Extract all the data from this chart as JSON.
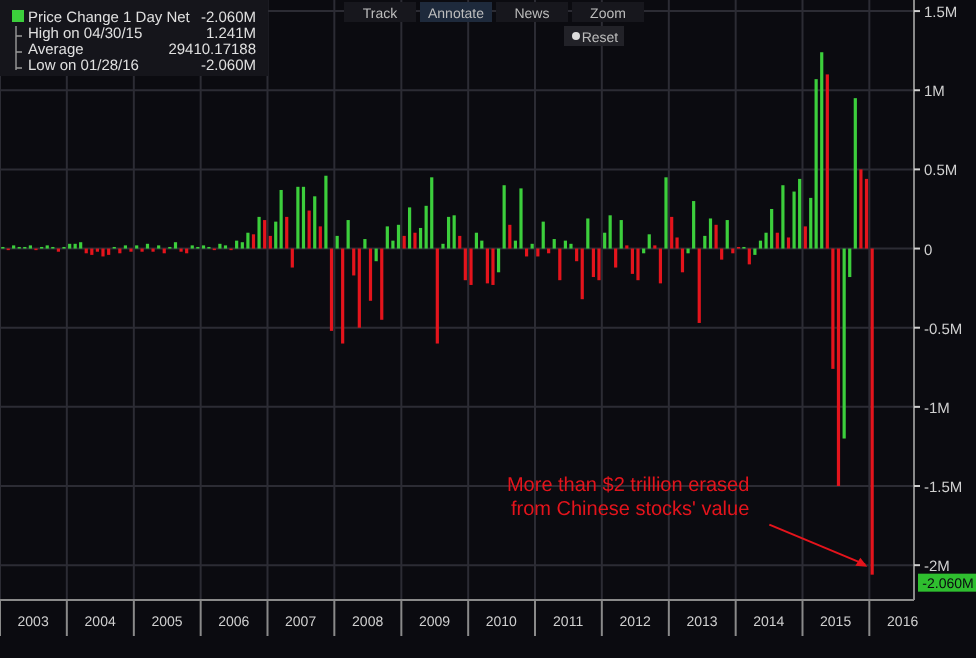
{
  "chart_data": {
    "type": "bar",
    "x": [
      "2003-01",
      "2003-02",
      "2003-03",
      "2003-04",
      "2003-05",
      "2003-06",
      "2003-07",
      "2003-08",
      "2003-09",
      "2003-10",
      "2003-11",
      "2003-12",
      "2004-01",
      "2004-02",
      "2004-03",
      "2004-04",
      "2004-05",
      "2004-06",
      "2004-07",
      "2004-08",
      "2004-09",
      "2004-10",
      "2004-11",
      "2004-12",
      "2005-01",
      "2005-02",
      "2005-03",
      "2005-04",
      "2005-05",
      "2005-06",
      "2005-07",
      "2005-08",
      "2005-09",
      "2005-10",
      "2005-11",
      "2005-12",
      "2006-01",
      "2006-02",
      "2006-03",
      "2006-04",
      "2006-05",
      "2006-06",
      "2006-07",
      "2006-08",
      "2006-09",
      "2006-10",
      "2006-11",
      "2006-12",
      "2007-01",
      "2007-02",
      "2007-03",
      "2007-04",
      "2007-05",
      "2007-06",
      "2007-07",
      "2007-08",
      "2007-09",
      "2007-10",
      "2007-11",
      "2007-12",
      "2008-01",
      "2008-02",
      "2008-03",
      "2008-04",
      "2008-05",
      "2008-06",
      "2008-07",
      "2008-08",
      "2008-09",
      "2008-10",
      "2008-11",
      "2008-12",
      "2009-01",
      "2009-02",
      "2009-03",
      "2009-04",
      "2009-05",
      "2009-06",
      "2009-07",
      "2009-08",
      "2009-09",
      "2009-10",
      "2009-11",
      "2009-12",
      "2010-01",
      "2010-02",
      "2010-03",
      "2010-04",
      "2010-05",
      "2010-06",
      "2010-07",
      "2010-08",
      "2010-09",
      "2010-10",
      "2010-11",
      "2010-12",
      "2011-01",
      "2011-02",
      "2011-03",
      "2011-04",
      "2011-05",
      "2011-06",
      "2011-07",
      "2011-08",
      "2011-09",
      "2011-10",
      "2011-11",
      "2011-12",
      "2012-01",
      "2012-02",
      "2012-03",
      "2012-04",
      "2012-05",
      "2012-06",
      "2012-07",
      "2012-08",
      "2012-09",
      "2012-10",
      "2012-11",
      "2012-12",
      "2013-01",
      "2013-02",
      "2013-03",
      "2013-04",
      "2013-05",
      "2013-06",
      "2013-07",
      "2013-08",
      "2013-09",
      "2013-10",
      "2013-11",
      "2013-12",
      "2014-01",
      "2014-02",
      "2014-03",
      "2014-04",
      "2014-05",
      "2014-06",
      "2014-07",
      "2014-08",
      "2014-09",
      "2014-10",
      "2014-11",
      "2014-12",
      "2015-01",
      "2015-02",
      "2015-03",
      "2015-04",
      "2015-05",
      "2015-06",
      "2015-07",
      "2015-08",
      "2015-09",
      "2015-10",
      "2015-11",
      "2015-12",
      "2016-01"
    ],
    "series": [
      {
        "name": "Price Change 1 Day Net",
        "color": "#3ccf3c",
        "values": [
          0.01,
          -0.01,
          0.02,
          0.01,
          0.01,
          0.02,
          -0.01,
          0.01,
          0.02,
          0.01,
          -0.02,
          0.01,
          0.03,
          0.03,
          0.04,
          -0.03,
          -0.04,
          -0.02,
          -0.05,
          -0.04,
          0.01,
          -0.03,
          0.02,
          -0.02,
          0.02,
          -0.02,
          0.03,
          -0.02,
          0.02,
          -0.03,
          0.01,
          0.04,
          -0.02,
          -0.03,
          0.02,
          0.01,
          0.02,
          0.01,
          -0.01,
          0.03,
          0.02,
          -0.01,
          0.05,
          0.04,
          0.1,
          0.09,
          0.2,
          0.18,
          0.08,
          0.17,
          0.37,
          0.2,
          -0.12,
          0.39,
          0.39,
          0.24,
          0.33,
          0.14,
          0.46,
          -0.52,
          0.08,
          -0.6,
          0.18,
          -0.17,
          -0.5,
          0.06,
          -0.33,
          -0.08,
          -0.45,
          0.14,
          0.05,
          0.15,
          0.08,
          0.26,
          0.1,
          0.13,
          0.27,
          0.45,
          -0.6,
          0.03,
          0.2,
          0.21,
          0.08,
          -0.2,
          -0.23,
          0.1,
          0.05,
          -0.22,
          -0.23,
          -0.15,
          0.4,
          0.15,
          0.05,
          0.38,
          -0.05,
          0.03,
          -0.05,
          0.17,
          -0.03,
          0.06,
          -0.2,
          0.05,
          0.03,
          -0.08,
          -0.32,
          0.19,
          -0.18,
          -0.2,
          0.1,
          0.21,
          -0.12,
          0.18,
          0.02,
          -0.16,
          -0.2,
          -0.03,
          0.09,
          0.02,
          -0.22,
          0.45,
          0.2,
          0.07,
          -0.15,
          -0.03,
          0.3,
          -0.47,
          0.08,
          0.19,
          0.15,
          -0.07,
          0.18,
          -0.03,
          0.01,
          0.01,
          -0.1,
          -0.04,
          0.05,
          0.1,
          0.25,
          0.1,
          0.4,
          0.07,
          0.36,
          0.44,
          0.14,
          0.32,
          1.07,
          1.24,
          1.1,
          -0.76,
          -1.5,
          -1.2,
          -0.18,
          0.95,
          0.5,
          0.44,
          -2.06
        ],
        "colors": [
          "#3ccf3c",
          "#e4141c",
          "#3ccf3c",
          "#3ccf3c",
          "#3ccf3c",
          "#3ccf3c",
          "#e4141c",
          "#3ccf3c",
          "#3ccf3c",
          "#3ccf3c",
          "#e4141c",
          "#3ccf3c",
          "#3ccf3c",
          "#3ccf3c",
          "#3ccf3c",
          "#e4141c",
          "#e4141c",
          "#e4141c",
          "#e4141c",
          "#e4141c",
          "#3ccf3c",
          "#e4141c",
          "#3ccf3c",
          "#e4141c",
          "#3ccf3c",
          "#e4141c",
          "#3ccf3c",
          "#e4141c",
          "#3ccf3c",
          "#e4141c",
          "#3ccf3c",
          "#3ccf3c",
          "#e4141c",
          "#e4141c",
          "#3ccf3c",
          "#3ccf3c",
          "#3ccf3c",
          "#3ccf3c",
          "#e4141c",
          "#3ccf3c",
          "#3ccf3c",
          "#e4141c",
          "#3ccf3c",
          "#3ccf3c",
          "#3ccf3c",
          "#e4141c",
          "#3ccf3c",
          "#e4141c",
          "#e4141c",
          "#3ccf3c",
          "#3ccf3c",
          "#e4141c",
          "#e4141c",
          "#3ccf3c",
          "#3ccf3c",
          "#e4141c",
          "#3ccf3c",
          "#e4141c",
          "#3ccf3c",
          "#e4141c",
          "#3ccf3c",
          "#e4141c",
          "#3ccf3c",
          "#e4141c",
          "#e4141c",
          "#3ccf3c",
          "#e4141c",
          "#3ccf3c",
          "#e4141c",
          "#3ccf3c",
          "#3ccf3c",
          "#3ccf3c",
          "#e4141c",
          "#3ccf3c",
          "#e4141c",
          "#3ccf3c",
          "#3ccf3c",
          "#3ccf3c",
          "#e4141c",
          "#3ccf3c",
          "#3ccf3c",
          "#3ccf3c",
          "#e4141c",
          "#e4141c",
          "#e4141c",
          "#3ccf3c",
          "#3ccf3c",
          "#e4141c",
          "#e4141c",
          "#3ccf3c",
          "#3ccf3c",
          "#e4141c",
          "#3ccf3c",
          "#3ccf3c",
          "#e4141c",
          "#3ccf3c",
          "#e4141c",
          "#3ccf3c",
          "#e4141c",
          "#3ccf3c",
          "#e4141c",
          "#3ccf3c",
          "#3ccf3c",
          "#e4141c",
          "#e4141c",
          "#3ccf3c",
          "#e4141c",
          "#e4141c",
          "#3ccf3c",
          "#3ccf3c",
          "#e4141c",
          "#3ccf3c",
          "#e4141c",
          "#e4141c",
          "#e4141c",
          "#3ccf3c",
          "#3ccf3c",
          "#e4141c",
          "#e4141c",
          "#3ccf3c",
          "#e4141c",
          "#e4141c",
          "#e4141c",
          "#3ccf3c",
          "#3ccf3c",
          "#e4141c",
          "#3ccf3c",
          "#3ccf3c",
          "#e4141c",
          "#e4141c",
          "#3ccf3c",
          "#e4141c",
          "#e4141c",
          "#3ccf3c",
          "#e4141c",
          "#3ccf3c",
          "#3ccf3c",
          "#3ccf3c",
          "#3ccf3c",
          "#e4141c",
          "#3ccf3c",
          "#e4141c",
          "#3ccf3c",
          "#3ccf3c",
          "#e4141c",
          "#3ccf3c",
          "#3ccf3c",
          "#3ccf3c",
          "#e4141c",
          "#e4141c",
          "#e4141c",
          "#3ccf3c",
          "#3ccf3c",
          "#3ccf3c",
          "#e4141c",
          "#e4141c",
          "#e4141c"
        ]
      }
    ],
    "xlim": [
      "2003-01",
      "2016-09"
    ],
    "xticks": [
      {
        "value": "2003-01",
        "label": null
      },
      {
        "value": "2003-07",
        "label": "2003"
      },
      {
        "value": "2004-01",
        "label": null
      },
      {
        "value": "2004-07",
        "label": "2004"
      },
      {
        "value": "2005-01",
        "label": null
      },
      {
        "value": "2005-07",
        "label": "2005"
      },
      {
        "value": "2006-01",
        "label": null
      },
      {
        "value": "2006-07",
        "label": "2006"
      },
      {
        "value": "2007-01",
        "label": null
      },
      {
        "value": "2007-07",
        "label": "2007"
      },
      {
        "value": "2008-01",
        "label": null
      },
      {
        "value": "2008-07",
        "label": "2008"
      },
      {
        "value": "2009-01",
        "label": null
      },
      {
        "value": "2009-07",
        "label": "2009"
      },
      {
        "value": "2010-01",
        "label": null
      },
      {
        "value": "2010-07",
        "label": "2010"
      },
      {
        "value": "2011-01",
        "label": null
      },
      {
        "value": "2011-07",
        "label": "2011"
      },
      {
        "value": "2012-01",
        "label": null
      },
      {
        "value": "2012-07",
        "label": "2012"
      },
      {
        "value": "2013-01",
        "label": null
      },
      {
        "value": "2013-07",
        "label": "2013"
      },
      {
        "value": "2014-01",
        "label": null
      },
      {
        "value": "2014-07",
        "label": "2014"
      },
      {
        "value": "2015-01",
        "label": null
      },
      {
        "value": "2015-07",
        "label": "2015"
      },
      {
        "value": "2016-01",
        "label": null
      },
      {
        "value": "2016-07",
        "label": "2016"
      }
    ],
    "ylim": [
      -2.22,
      1.57
    ],
    "yticks": [
      {
        "value": 1.5,
        "label": "1.5M"
      },
      {
        "value": 1,
        "label": "1M"
      },
      {
        "value": 0.5,
        "label": "0.5M"
      },
      0,
      {
        "value": -0.5,
        "label": "-0.5M"
      },
      {
        "value": -1,
        "label": "-1M"
      },
      {
        "value": -1.5,
        "label": "-1.5M"
      },
      {
        "value": -2,
        "label": "-2M"
      }
    ],
    "grid": true,
    "legend": "top left",
    "annotations": [
      "-2.060M",
      "High on 04/30/15",
      "1.241M",
      "Average",
      "29410.17188",
      "Low on 01/28/16",
      "-2.060M",
      {
        "text": "More than $2 trillion erased\nfrom Chinese stocks' value",
        "x": "2016-01",
        "y": -2.06
      },
      "-2.060M",
      "Track",
      "Annotate",
      "News",
      "Zoom",
      "Reset"
    ]
  }
}
